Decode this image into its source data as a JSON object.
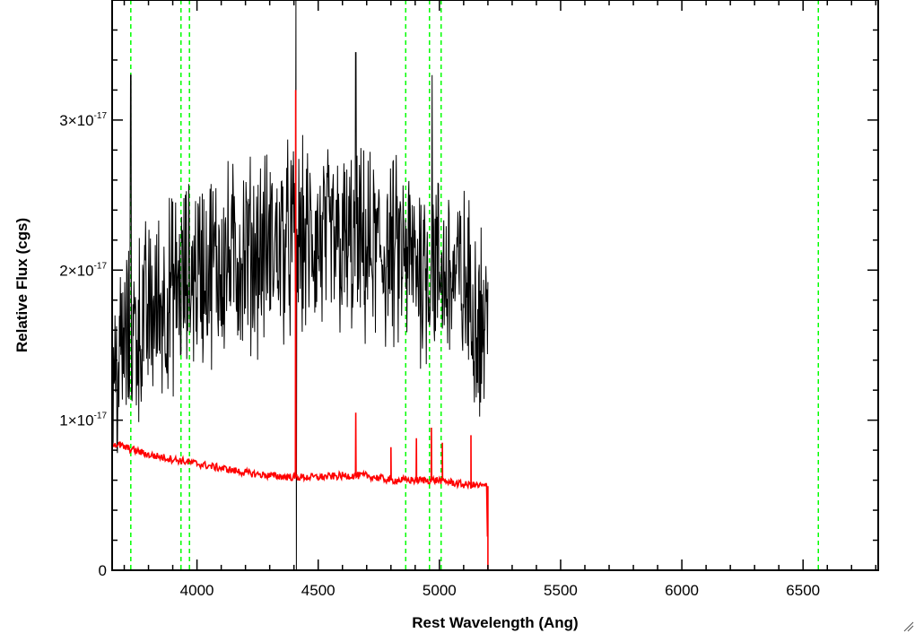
{
  "chart_data": {
    "type": "line",
    "title": "",
    "xlabel": "Rest Wavelength (Ang)",
    "ylabel": "Relative Flux (cgs)",
    "xlim": [
      3650,
      6810
    ],
    "ylim": [
      0,
      3.8e-17
    ],
    "x_ticks": [
      {
        "value": 4000,
        "label": "4000"
      },
      {
        "value": 4500,
        "label": "4500"
      },
      {
        "value": 5000,
        "label": "5000"
      },
      {
        "value": 5500,
        "label": "5500"
      },
      {
        "value": 6000,
        "label": "6000"
      },
      {
        "value": 6500,
        "label": "6500"
      }
    ],
    "y_ticks": [
      {
        "value": 0,
        "label": "0",
        "exponent": ""
      },
      {
        "value": 1e-17,
        "label": "1×10",
        "exponent": "-17"
      },
      {
        "value": 2e-17,
        "label": "2×10",
        "exponent": "-17"
      },
      {
        "value": 3e-17,
        "label": "3×10",
        "exponent": "-17"
      }
    ],
    "grid": false,
    "legend": "none",
    "reference_lines": {
      "color": "#00ff00",
      "style": "dashed",
      "x": [
        3727,
        3934,
        3969,
        4861,
        4959,
        5007,
        6563
      ]
    },
    "series": [
      {
        "color": "#000000",
        "x_range": [
          3650,
          5200
        ],
        "features": [
          {
            "x": 3727,
            "y": 3.3e-17
          },
          {
            "x": 4408,
            "y": 3.8e-17
          },
          {
            "x": 4410,
            "y": 0
          },
          {
            "x": 4655,
            "y": 3.45e-17
          },
          {
            "x": 4970,
            "y": 3.3e-17
          }
        ],
        "profile": [
          [
            3650,
            1.2e-17
          ],
          [
            3700,
            1.5e-17
          ],
          [
            3800,
            1.7e-17
          ],
          [
            3900,
            1.85e-17
          ],
          [
            4000,
            2e-17
          ],
          [
            4200,
            2.1e-17
          ],
          [
            4400,
            2.2e-17
          ],
          [
            4600,
            2.15e-17
          ],
          [
            4800,
            2.1e-17
          ],
          [
            5000,
            2e-17
          ],
          [
            5100,
            1.9e-17
          ],
          [
            5200,
            1.6e-17
          ]
        ]
      },
      {
        "color": "#ff0000",
        "points": [
          [
            3650,
            8.5e-18
          ],
          [
            3700,
            8.2e-18
          ],
          [
            3800,
            7.7e-18
          ],
          [
            3900,
            7.4e-18
          ],
          [
            4000,
            7.1e-18
          ],
          [
            4100,
            6.8e-18
          ],
          [
            4200,
            6.5e-18
          ],
          [
            4300,
            6.3e-18
          ],
          [
            4400,
            6.2e-18
          ],
          [
            4500,
            6.2e-18
          ],
          [
            4600,
            6.3e-18
          ],
          [
            4700,
            6.3e-18
          ],
          [
            4800,
            6e-18
          ],
          [
            4900,
            6e-18
          ],
          [
            5000,
            6e-18
          ],
          [
            5100,
            5.7e-18
          ],
          [
            5195,
            5.6e-18
          ],
          [
            5200,
            0.0
          ],
          [
            6810,
            0.0
          ]
        ],
        "features": [
          {
            "x": 4407,
            "y": 3.2e-17
          },
          {
            "x": 4655,
            "y": 1.05e-17
          },
          {
            "x": 4800,
            "y": 8.2e-18
          },
          {
            "x": 4905,
            "y": 8.8e-18
          },
          {
            "x": 4967,
            "y": 9.5e-18
          },
          {
            "x": 5012,
            "y": 8.5e-18
          },
          {
            "x": 5130,
            "y": 9e-18
          }
        ]
      }
    ]
  }
}
